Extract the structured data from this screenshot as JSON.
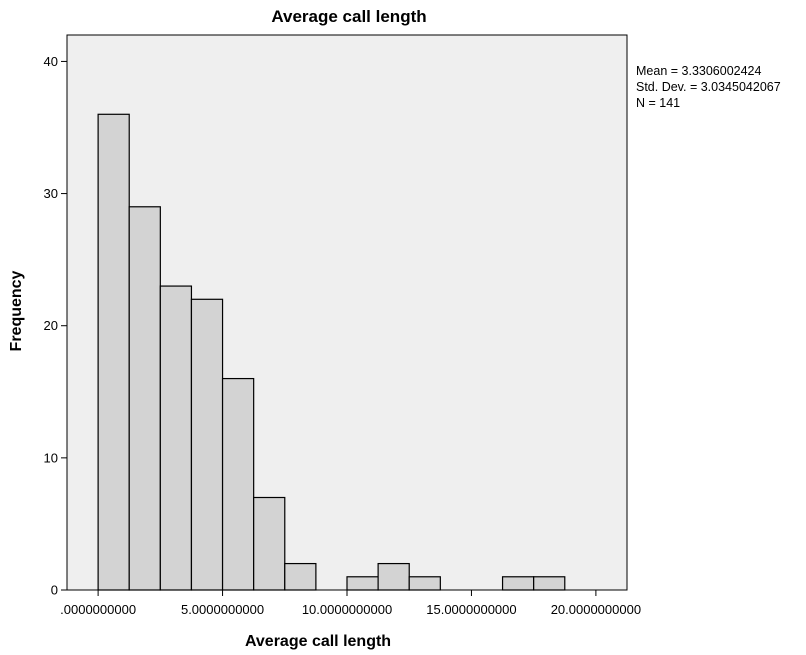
{
  "chart_data": {
    "type": "bar",
    "title": "Average call length",
    "xlabel": "Average call length",
    "ylabel": "Frequency",
    "xlim": [
      -1.25,
      21.25
    ],
    "ylim": [
      0,
      42
    ],
    "x_ticks": [
      {
        "value": 0,
        "label": ".0000000000"
      },
      {
        "value": 5,
        "label": "5.0000000000"
      },
      {
        "value": 10,
        "label": "10.0000000000"
      },
      {
        "value": 15,
        "label": "15.0000000000"
      },
      {
        "value": 20,
        "label": "20.0000000000"
      }
    ],
    "y_ticks": [
      0,
      10,
      20,
      30,
      40
    ],
    "bins": [
      {
        "start": 0.0,
        "end": 1.25,
        "count": 36
      },
      {
        "start": 1.25,
        "end": 2.5,
        "count": 29
      },
      {
        "start": 2.5,
        "end": 3.75,
        "count": 23
      },
      {
        "start": 3.75,
        "end": 5.0,
        "count": 22
      },
      {
        "start": 5.0,
        "end": 6.25,
        "count": 16
      },
      {
        "start": 6.25,
        "end": 7.5,
        "count": 7
      },
      {
        "start": 7.5,
        "end": 8.75,
        "count": 2
      },
      {
        "start": 8.75,
        "end": 10.0,
        "count": 0
      },
      {
        "start": 10.0,
        "end": 11.25,
        "count": 1
      },
      {
        "start": 11.25,
        "end": 12.5,
        "count": 2
      },
      {
        "start": 12.5,
        "end": 13.75,
        "count": 1
      },
      {
        "start": 13.75,
        "end": 15.0,
        "count": 0
      },
      {
        "start": 15.0,
        "end": 16.25,
        "count": 0
      },
      {
        "start": 16.25,
        "end": 17.5,
        "count": 1
      },
      {
        "start": 17.5,
        "end": 18.75,
        "count": 1
      }
    ],
    "stats": {
      "mean": "Mean = 3.3306002424",
      "std_dev": "Std. Dev. = 3.0345042067",
      "n": "N = 141"
    },
    "colors": {
      "plot_background": "#efefef",
      "bar_fill": "#d3d3d3",
      "bar_stroke": "#000000"
    },
    "grid": false,
    "legend": "none"
  }
}
